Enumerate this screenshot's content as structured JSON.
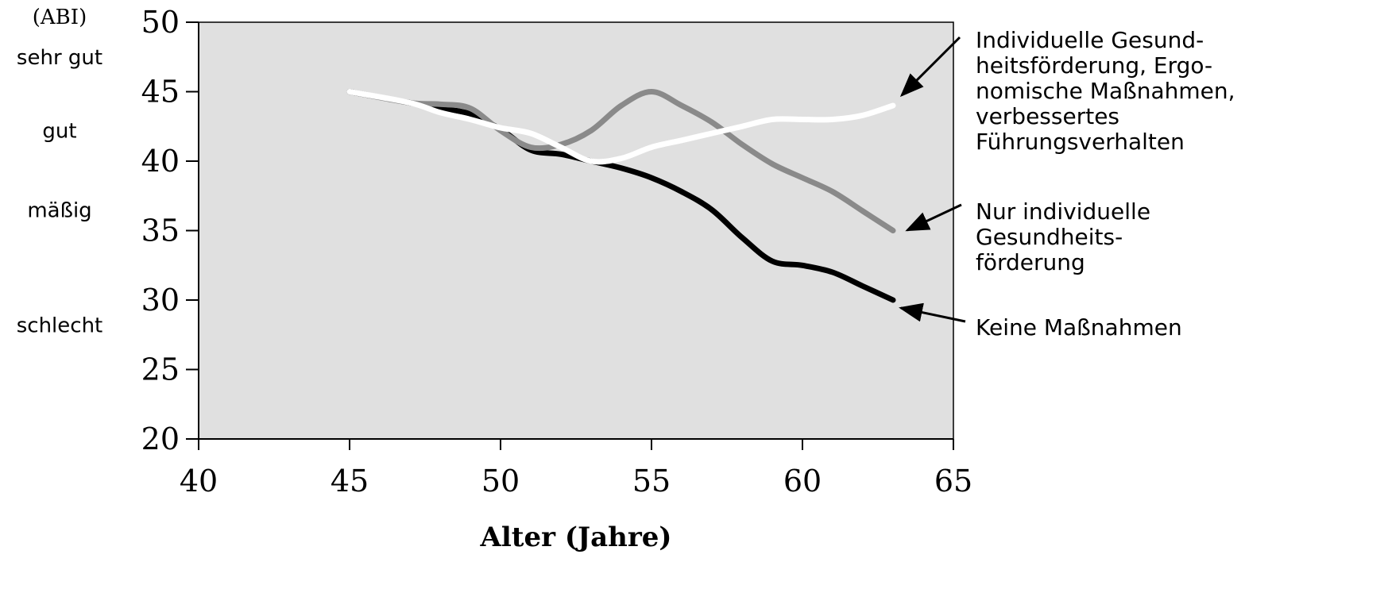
{
  "chart_data": {
    "type": "line",
    "ylabel": "(ABI)",
    "xlabel": "Alter (Jahre)",
    "xlim": [
      40,
      65
    ],
    "ylim": [
      20,
      50
    ],
    "xticks": [
      40,
      45,
      50,
      55,
      60,
      65
    ],
    "yticks": [
      20,
      25,
      30,
      35,
      40,
      45,
      50
    ],
    "grid": false,
    "plot_background": "#e0e0e0",
    "rating_labels": [
      {
        "text": "sehr gut",
        "y": 47.5
      },
      {
        "text": "gut",
        "y": 42.2
      },
      {
        "text": "mäßig",
        "y": 36.5
      },
      {
        "text": "schlecht",
        "y": 28.2
      }
    ],
    "series": [
      {
        "key": "black",
        "name": "Keine Maßnahmen",
        "color": "#000000",
        "x": [
          45,
          47,
          48,
          49,
          50,
          51,
          52,
          53,
          54,
          55,
          56,
          57,
          58,
          59,
          60,
          61,
          62,
          63
        ],
        "y": [
          45,
          44.2,
          43.8,
          43.4,
          42.3,
          40.8,
          40.5,
          40.0,
          39.5,
          38.8,
          37.8,
          36.5,
          34.5,
          32.8,
          32.5,
          32.0,
          31.0,
          30.0
        ]
      },
      {
        "key": "gray",
        "name": "Nur individuelle Gesundheitsförderung",
        "color": "#8a8a8a",
        "x": [
          45,
          47,
          48,
          49,
          50,
          51,
          52,
          53,
          54,
          55,
          56,
          57,
          58,
          59,
          60,
          61,
          62,
          63
        ],
        "y": [
          45,
          44.2,
          44.1,
          43.8,
          42.2,
          41.0,
          41.2,
          42.2,
          44.0,
          45.0,
          44.0,
          42.8,
          41.2,
          39.8,
          38.8,
          37.8,
          36.4,
          35.0
        ]
      },
      {
        "key": "white",
        "name": "Individuelle Gesundheitsförderung, Ergonomische Maßnahmen, verbessertes Führungsverhalten",
        "color": "#ffffff",
        "x": [
          45,
          47,
          48,
          49,
          50,
          51,
          52,
          53,
          54,
          55,
          56,
          57,
          58,
          59,
          60,
          61,
          62,
          63
        ],
        "y": [
          45,
          44.2,
          43.5,
          43.0,
          42.4,
          42.0,
          41.0,
          40.0,
          40.2,
          41.0,
          41.5,
          42.0,
          42.5,
          43.0,
          43.0,
          43.0,
          43.3,
          44.0
        ]
      }
    ],
    "annotations": [
      {
        "series": "white",
        "lines": [
          "Individuelle Gesund-",
          "heitsförderung, Ergo-",
          "nomische Maßnahmen,",
          "verbessertes",
          "Führungsverhalten"
        ]
      },
      {
        "series": "gray",
        "lines": [
          "Nur individuelle",
          "Gesundheits-",
          "förderung"
        ]
      },
      {
        "series": "black",
        "lines": [
          "Keine Maßnahmen"
        ]
      }
    ]
  }
}
